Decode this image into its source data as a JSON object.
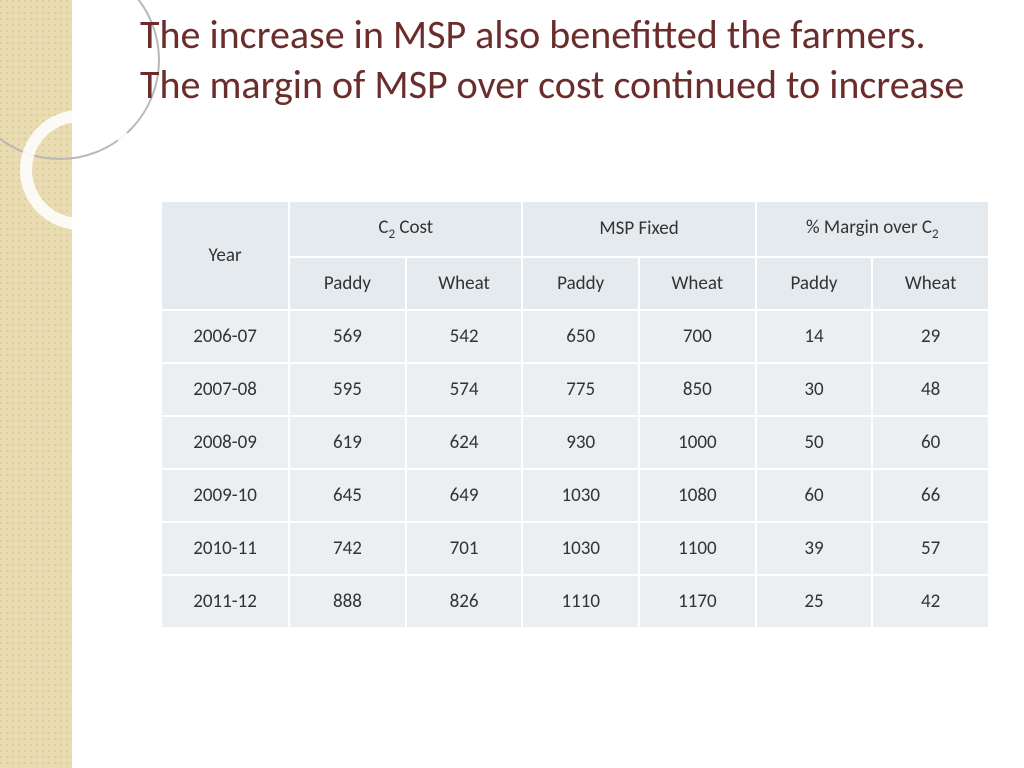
{
  "title": "The increase in MSP also benefitted the farmers. The margin of MSP over cost continued to increase",
  "colors": {
    "title_color": "#6b2c2c",
    "side_band": "#e9dcb2",
    "cell_bg": "#ebeff2",
    "header_bg": "#e5eaee",
    "background": "#ffffff"
  },
  "typography": {
    "title_fontsize": 40,
    "cell_fontsize": 19,
    "font_family": "Gill Sans"
  },
  "table": {
    "type": "table",
    "columns": {
      "year": "Year",
      "group1": "C₂ Cost",
      "group2": "MSP Fixed",
      "group3": "% Margin over C₂",
      "sub_paddy": "Paddy",
      "sub_wheat": "Wheat"
    },
    "rows": [
      {
        "year": "2006-07",
        "c2_paddy": "569",
        "c2_wheat": "542",
        "msp_paddy": "650",
        "msp_wheat": "700",
        "margin_paddy": "14",
        "margin_wheat": "29"
      },
      {
        "year": "2007-08",
        "c2_paddy": "595",
        "c2_wheat": "574",
        "msp_paddy": "775",
        "msp_wheat": "850",
        "margin_paddy": "30",
        "margin_wheat": "48"
      },
      {
        "year": "2008-09",
        "c2_paddy": "619",
        "c2_wheat": "624",
        "msp_paddy": "930",
        "msp_wheat": "1000",
        "margin_paddy": "50",
        "margin_wheat": "60"
      },
      {
        "year": "2009-10",
        "c2_paddy": "645",
        "c2_wheat": "649",
        "msp_paddy": "1030",
        "msp_wheat": "1080",
        "margin_paddy": "60",
        "margin_wheat": "66"
      },
      {
        "year": "2010-11",
        "c2_paddy": "742",
        "c2_wheat": "701",
        "msp_paddy": "1030",
        "msp_wheat": "1100",
        "margin_paddy": "39",
        "margin_wheat": "57"
      },
      {
        "year": "2011-12",
        "c2_paddy": "888",
        "c2_wheat": "826",
        "msp_paddy": "1110",
        "msp_wheat": "1170",
        "margin_paddy": "25",
        "margin_wheat": "42"
      }
    ]
  }
}
